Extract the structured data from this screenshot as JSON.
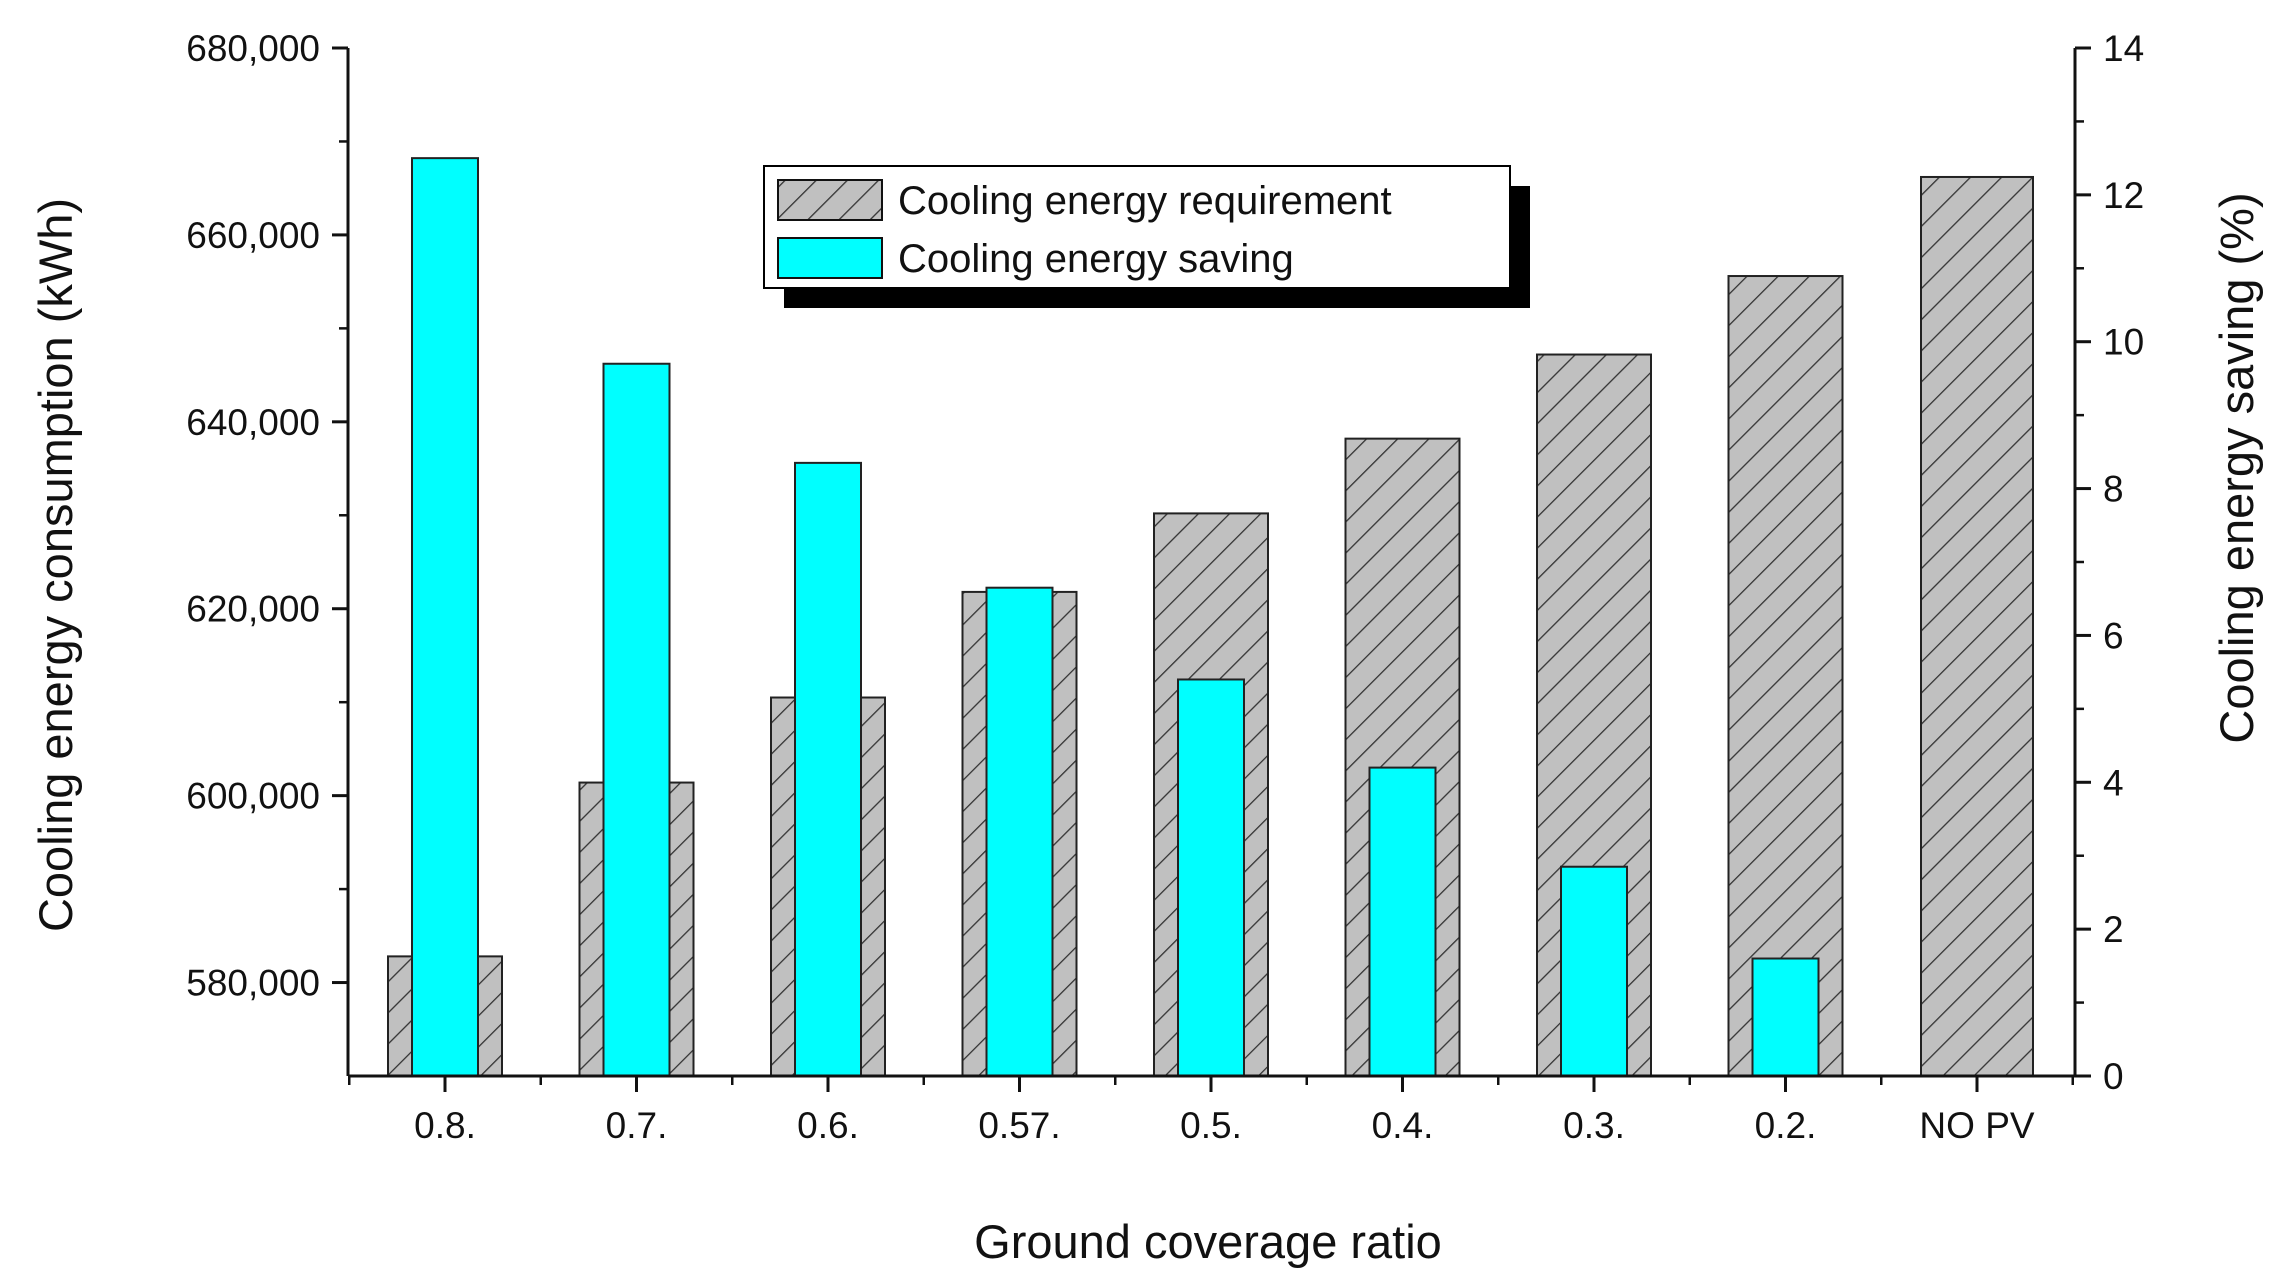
{
  "chart_data": {
    "type": "bar",
    "title": "",
    "xlabel": "Ground coverage ratio",
    "ylabel_left": "Cooling energy consumption (kWh)",
    "ylabel_right": "Cooling energy saving (%)",
    "categories": [
      "0.8.",
      "0.7.",
      "0.6.",
      "0.57.",
      "0.5.",
      "0.4.",
      "0.3.",
      "0.2.",
      "NO PV"
    ],
    "ylim_left": [
      570000,
      680000
    ],
    "ylim_right": [
      0,
      14
    ],
    "yticks_left": [
      580000,
      600000,
      620000,
      640000,
      660000,
      680000
    ],
    "yticks_left_labels": [
      "580,000",
      "600,000",
      "620,000",
      "640,000",
      "660,000",
      "680,000"
    ],
    "yticks_right": [
      0,
      2,
      4,
      6,
      8,
      10,
      12,
      14
    ],
    "yticks_right_labels": [
      "0",
      "2",
      "4",
      "6",
      "8",
      "10",
      "12",
      "14"
    ],
    "series": [
      {
        "name": "Cooling energy requirement",
        "axis": "left",
        "style": "hatched",
        "values": [
          582800,
          601400,
          610500,
          621800,
          630200,
          638200,
          647200,
          655600,
          666200
        ]
      },
      {
        "name": "Cooling energy saving",
        "axis": "right",
        "style": "solid",
        "values": [
          12.5,
          9.7,
          8.35,
          6.65,
          5.4,
          4.2,
          2.85,
          1.6,
          null
        ]
      }
    ],
    "legend_position": "top-center",
    "grid": false,
    "colors": {
      "requirement_fill": "#c0c0c0",
      "requirement_hatch": "#333333",
      "saving_fill": "#00ffff",
      "axis": "#111111"
    }
  }
}
